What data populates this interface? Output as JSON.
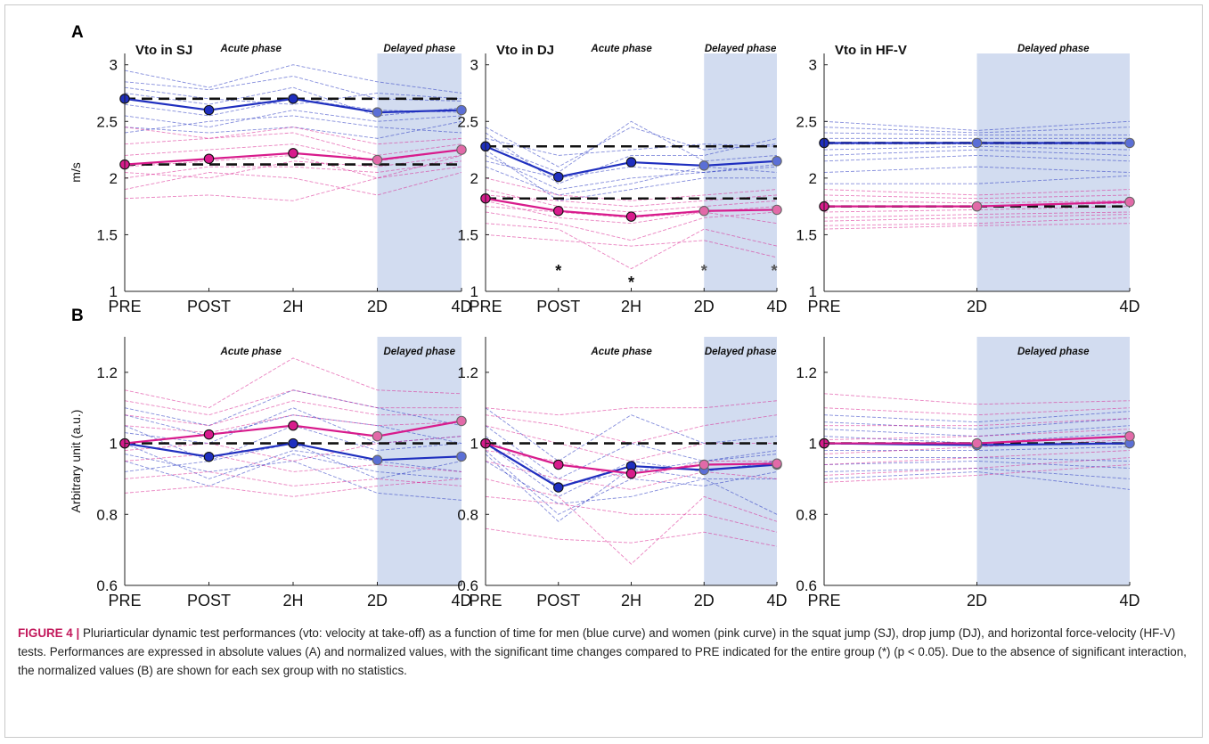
{
  "panel_labels": {
    "a": "A",
    "b": "B"
  },
  "chart_data": [
    {
      "type": "line",
      "panel": "A",
      "title": "Vto in SJ",
      "ylabel": "m/s",
      "xlabel": "",
      "categories": [
        "PRE",
        "POST",
        "2H",
        "2D",
        "4D"
      ],
      "ylim": [
        1,
        3.1
      ],
      "yticks": [
        1,
        1.5,
        2,
        2.5,
        3
      ],
      "phase_labels": [
        "Acute phase",
        "Delayed phase"
      ],
      "delayed_from": "2D",
      "asterisks": [],
      "series": [
        {
          "color": "#1f2fbf",
          "values": [
            2.7,
            2.6,
            2.7,
            2.58,
            2.6
          ]
        },
        {
          "color": "#d81b8c",
          "values": [
            2.12,
            2.17,
            2.22,
            2.16,
            2.25
          ]
        }
      ],
      "baselines": [
        2.7,
        2.12
      ],
      "individual_lines": [
        {
          "color": "#1f2fbf",
          "values": [
            [
              2.95,
              2.8,
              3.0,
              2.85,
              2.75
            ],
            [
              2.85,
              2.78,
              2.9,
              2.7,
              2.68
            ],
            [
              2.75,
              2.65,
              2.8,
              2.55,
              2.62
            ],
            [
              2.65,
              2.55,
              2.7,
              2.6,
              2.58
            ],
            [
              2.55,
              2.45,
              2.6,
              2.5,
              2.55
            ],
            [
              2.45,
              2.4,
              2.45,
              2.35,
              2.5
            ],
            [
              2.4,
              2.5,
              2.55,
              2.45,
              2.4
            ],
            [
              2.8,
              2.7,
              2.65,
              2.75,
              2.7
            ]
          ]
        },
        {
          "color": "#d81b8c",
          "values": [
            [
              2.45,
              2.35,
              2.45,
              2.3,
              2.35
            ],
            [
              2.3,
              2.35,
              2.4,
              2.2,
              2.3
            ],
            [
              2.2,
              2.25,
              2.3,
              2.15,
              2.25
            ],
            [
              2.1,
              2.15,
              2.2,
              2.0,
              2.2
            ],
            [
              2.0,
              2.1,
              2.1,
              2.05,
              2.15
            ],
            [
              1.9,
              2.05,
              2.0,
              1.85,
              2.05
            ],
            [
              1.82,
              1.85,
              1.8,
              2.0,
              2.1
            ],
            [
              2.05,
              2.0,
              2.15,
              2.1,
              2.2
            ]
          ]
        }
      ]
    },
    {
      "type": "line",
      "panel": "A",
      "title": "Vto in DJ",
      "ylabel": "",
      "xlabel": "",
      "categories": [
        "PRE",
        "POST",
        "2H",
        "2D",
        "4D"
      ],
      "ylim": [
        1,
        3.1
      ],
      "yticks": [
        1,
        1.5,
        2,
        2.5,
        3
      ],
      "phase_labels": [
        "Acute phase",
        "Delayed phase"
      ],
      "delayed_from": "2D",
      "asterisks": [
        "POST",
        "2H",
        "2D",
        "4D"
      ],
      "series": [
        {
          "color": "#1f2fbf",
          "values": [
            2.28,
            2.01,
            2.14,
            2.11,
            2.15
          ]
        },
        {
          "color": "#d81b8c",
          "values": [
            1.82,
            1.71,
            1.66,
            1.71,
            1.72
          ]
        }
      ],
      "baselines": [
        2.28,
        1.82
      ],
      "individual_lines": [
        {
          "color": "#1f2fbf",
          "values": [
            [
              2.45,
              2.1,
              2.45,
              2.25,
              2.3
            ],
            [
              2.4,
              1.95,
              2.2,
              2.2,
              2.35
            ],
            [
              2.3,
              2.05,
              2.5,
              2.15,
              2.2
            ],
            [
              2.2,
              1.9,
              2.0,
              2.05,
              2.1
            ],
            [
              2.1,
              1.85,
              1.95,
              2.1,
              2.05
            ],
            [
              2.35,
              2.2,
              2.25,
              2.3,
              2.28
            ],
            [
              2.25,
              1.8,
              1.9,
              2.0,
              2.0
            ],
            [
              2.15,
              2.0,
              2.1,
              2.05,
              2.12
            ]
          ]
        },
        {
          "color": "#d81b8c",
          "values": [
            [
              2.0,
              1.85,
              1.8,
              1.85,
              1.9
            ],
            [
              1.9,
              1.75,
              1.7,
              1.75,
              1.8
            ],
            [
              1.8,
              1.65,
              1.6,
              1.7,
              1.75
            ],
            [
              1.7,
              1.6,
              1.45,
              1.65,
              1.7
            ],
            [
              1.6,
              1.55,
              1.2,
              1.55,
              1.4
            ],
            [
              1.5,
              1.45,
              1.4,
              1.45,
              1.3
            ],
            [
              1.75,
              1.7,
              1.65,
              1.7,
              1.6
            ],
            [
              1.85,
              1.8,
              1.75,
              1.8,
              1.85
            ]
          ]
        }
      ]
    },
    {
      "type": "line",
      "panel": "A",
      "title": "Vto in HF-V",
      "ylabel": "",
      "xlabel": "",
      "categories": [
        "PRE",
        "2D",
        "4D"
      ],
      "ylim": [
        1,
        3.1
      ],
      "yticks": [
        1,
        1.5,
        2,
        2.5,
        3
      ],
      "phase_labels": [
        "Delayed phase"
      ],
      "delayed_from": "2D",
      "asterisks": [],
      "series": [
        {
          "color": "#1f2fbf",
          "values": [
            2.31,
            2.31,
            2.31
          ]
        },
        {
          "color": "#d81b8c",
          "values": [
            1.75,
            1.75,
            1.79
          ]
        }
      ],
      "baselines": [
        2.31,
        1.75
      ],
      "individual_lines": [
        {
          "color": "#1f2fbf",
          "values": [
            [
              2.5,
              2.42,
              2.5
            ],
            [
              2.45,
              2.4,
              2.45
            ],
            [
              2.4,
              2.38,
              2.38
            ],
            [
              2.35,
              2.35,
              2.35
            ],
            [
              2.3,
              2.3,
              2.3
            ],
            [
              2.25,
              2.28,
              2.25
            ],
            [
              2.2,
              2.25,
              2.2
            ],
            [
              2.15,
              2.2,
              2.15
            ],
            [
              2.05,
              2.1,
              2.05
            ],
            [
              1.95,
              1.95,
              2.02
            ]
          ]
        },
        {
          "color": "#d81b8c",
          "values": [
            [
              1.9,
              1.85,
              1.9
            ],
            [
              1.85,
              1.82,
              1.85
            ],
            [
              1.8,
              1.78,
              1.8
            ],
            [
              1.75,
              1.75,
              1.78
            ],
            [
              1.7,
              1.72,
              1.75
            ],
            [
              1.65,
              1.68,
              1.7
            ],
            [
              1.62,
              1.65,
              1.68
            ],
            [
              1.58,
              1.6,
              1.65
            ],
            [
              1.55,
              1.58,
              1.6
            ]
          ]
        }
      ]
    },
    {
      "type": "line",
      "panel": "B",
      "title": "",
      "ylabel": "Arbitrary unit (a.u.)",
      "xlabel": "",
      "categories": [
        "PRE",
        "POST",
        "2H",
        "2D",
        "4D"
      ],
      "ylim": [
        0.6,
        1.3
      ],
      "yticks": [
        0.6,
        0.8,
        1,
        1.2
      ],
      "phase_labels": [
        "Acute phase",
        "Delayed phase"
      ],
      "delayed_from": "2D",
      "asterisks": [],
      "series": [
        {
          "color": "#1f2fbf",
          "values": [
            1.0,
            0.962,
            1.0,
            0.953,
            0.963
          ]
        },
        {
          "color": "#d81b8c",
          "values": [
            1.0,
            1.025,
            1.05,
            1.02,
            1.063
          ]
        }
      ],
      "baselines": [
        1.0
      ],
      "individual_lines": [
        {
          "color": "#1f2fbf",
          "values": [
            [
              1.1,
              1.05,
              1.15,
              1.1,
              1.05
            ],
            [
              1.05,
              0.95,
              1.0,
              0.9,
              0.95
            ],
            [
              1.0,
              0.9,
              0.98,
              0.95,
              0.92
            ],
            [
              0.95,
              0.88,
              0.97,
              0.92,
              0.9
            ],
            [
              0.92,
              0.95,
              1.05,
              0.98,
              1.0
            ],
            [
              1.03,
              1.0,
              1.1,
              1.0,
              1.02
            ],
            [
              0.97,
              0.92,
              0.95,
              0.86,
              0.84
            ],
            [
              1.08,
              1.02,
              1.08,
              1.05,
              1.0
            ]
          ]
        },
        {
          "color": "#d81b8c",
          "values": [
            [
              1.15,
              1.1,
              1.24,
              1.15,
              1.14
            ],
            [
              1.12,
              1.08,
              1.15,
              1.1,
              1.1
            ],
            [
              1.08,
              1.05,
              1.12,
              1.08,
              1.08
            ],
            [
              1.05,
              1.03,
              1.08,
              1.05,
              1.06
            ],
            [
              0.98,
              1.0,
              0.95,
              1.0,
              1.02
            ],
            [
              0.95,
              0.97,
              0.92,
              0.94,
              0.92
            ],
            [
              0.9,
              0.92,
              0.88,
              0.9,
              0.88
            ],
            [
              0.86,
              0.88,
              0.85,
              0.88,
              0.9
            ]
          ]
        }
      ]
    },
    {
      "type": "line",
      "panel": "B",
      "title": "",
      "ylabel": "",
      "xlabel": "",
      "categories": [
        "PRE",
        "POST",
        "2H",
        "2D",
        "4D"
      ],
      "ylim": [
        0.6,
        1.3
      ],
      "yticks": [
        0.6,
        0.8,
        1,
        1.2
      ],
      "phase_labels": [
        "Acute phase",
        "Delayed phase"
      ],
      "delayed_from": "2D",
      "asterisks": [],
      "series": [
        {
          "color": "#1f2fbf",
          "values": [
            1.0,
            0.876,
            0.936,
            0.925,
            0.94
          ]
        },
        {
          "color": "#d81b8c",
          "values": [
            1.0,
            0.94,
            0.915,
            0.94,
            0.943
          ]
        }
      ],
      "baselines": [
        1.0
      ],
      "individual_lines": [
        {
          "color": "#1f2fbf",
          "values": [
            [
              1.1,
              0.95,
              1.08,
              1.0,
              1.02
            ],
            [
              1.05,
              0.9,
              1.0,
              0.95,
              0.98
            ],
            [
              1.0,
              0.85,
              0.95,
              0.92,
              0.95
            ],
            [
              0.98,
              0.8,
              0.9,
              0.88,
              0.92
            ],
            [
              0.95,
              0.83,
              0.85,
              0.9,
              0.8
            ],
            [
              1.02,
              0.88,
              0.92,
              0.95,
              0.97
            ],
            [
              0.97,
              0.78,
              0.93,
              0.9,
              0.9
            ]
          ]
        },
        {
          "color": "#d81b8c",
          "values": [
            [
              1.1,
              1.08,
              1.1,
              1.1,
              1.12
            ],
            [
              1.08,
              1.05,
              1.0,
              1.05,
              1.08
            ],
            [
              1.05,
              1.0,
              0.95,
              1.0,
              1.0
            ],
            [
              0.98,
              0.95,
              0.9,
              0.95,
              0.95
            ],
            [
              0.9,
              0.85,
              0.66,
              0.85,
              0.78
            ],
            [
              0.85,
              0.83,
              0.8,
              0.8,
              0.75
            ],
            [
              0.76,
              0.73,
              0.72,
              0.75,
              0.71
            ],
            [
              0.95,
              0.9,
              0.87,
              0.92,
              0.9
            ]
          ]
        }
      ]
    },
    {
      "type": "line",
      "panel": "B",
      "title": "",
      "ylabel": "",
      "xlabel": "",
      "categories": [
        "PRE",
        "2D",
        "4D"
      ],
      "ylim": [
        0.6,
        1.3
      ],
      "yticks": [
        0.6,
        0.8,
        1,
        1.2
      ],
      "phase_labels": [
        "Delayed phase"
      ],
      "delayed_from": "2D",
      "asterisks": [],
      "series": [
        {
          "color": "#1f2fbf",
          "values": [
            1.0,
            0.995,
            1.0
          ]
        },
        {
          "color": "#d81b8c",
          "values": [
            1.0,
            1.0,
            1.02
          ]
        }
      ],
      "baselines": [
        1.0
      ],
      "individual_lines": [
        {
          "color": "#1f2fbf",
          "values": [
            [
              1.08,
              1.06,
              1.09
            ],
            [
              1.06,
              1.04,
              1.07
            ],
            [
              1.04,
              1.02,
              1.05
            ],
            [
              1.02,
              1.0,
              1.03
            ],
            [
              0.98,
              0.98,
              0.99
            ],
            [
              0.96,
              0.96,
              0.95
            ],
            [
              0.94,
              0.95,
              0.93
            ],
            [
              0.92,
              0.93,
              0.9
            ],
            [
              0.9,
              0.92,
              0.87
            ]
          ]
        },
        {
          "color": "#d81b8c",
          "values": [
            [
              1.14,
              1.11,
              1.12
            ],
            [
              1.1,
              1.08,
              1.1
            ],
            [
              1.05,
              1.05,
              1.07
            ],
            [
              1.01,
              1.02,
              1.04
            ],
            [
              0.97,
              0.99,
              1.01
            ],
            [
              0.94,
              0.96,
              0.98
            ],
            [
              0.91,
              0.93,
              0.96
            ],
            [
              0.89,
              0.91,
              0.94
            ]
          ]
        }
      ]
    }
  ],
  "caption": {
    "label": "FIGURE 4 |",
    "text": " Pluriarticular dynamic test performances (vto: velocity at take-off) as a function of time for men (blue curve) and women (pink curve) in the squat jump (SJ), drop jump (DJ), and horizontal force-velocity (HF-V) tests. Performances are expressed in absolute values (A) and normalized values, with the significant time changes compared to PRE indicated for the entire group (*) (p < 0.05). Due to the absence of significant interaction, the normalized values (B) are shown for each sex group with no statistics."
  }
}
